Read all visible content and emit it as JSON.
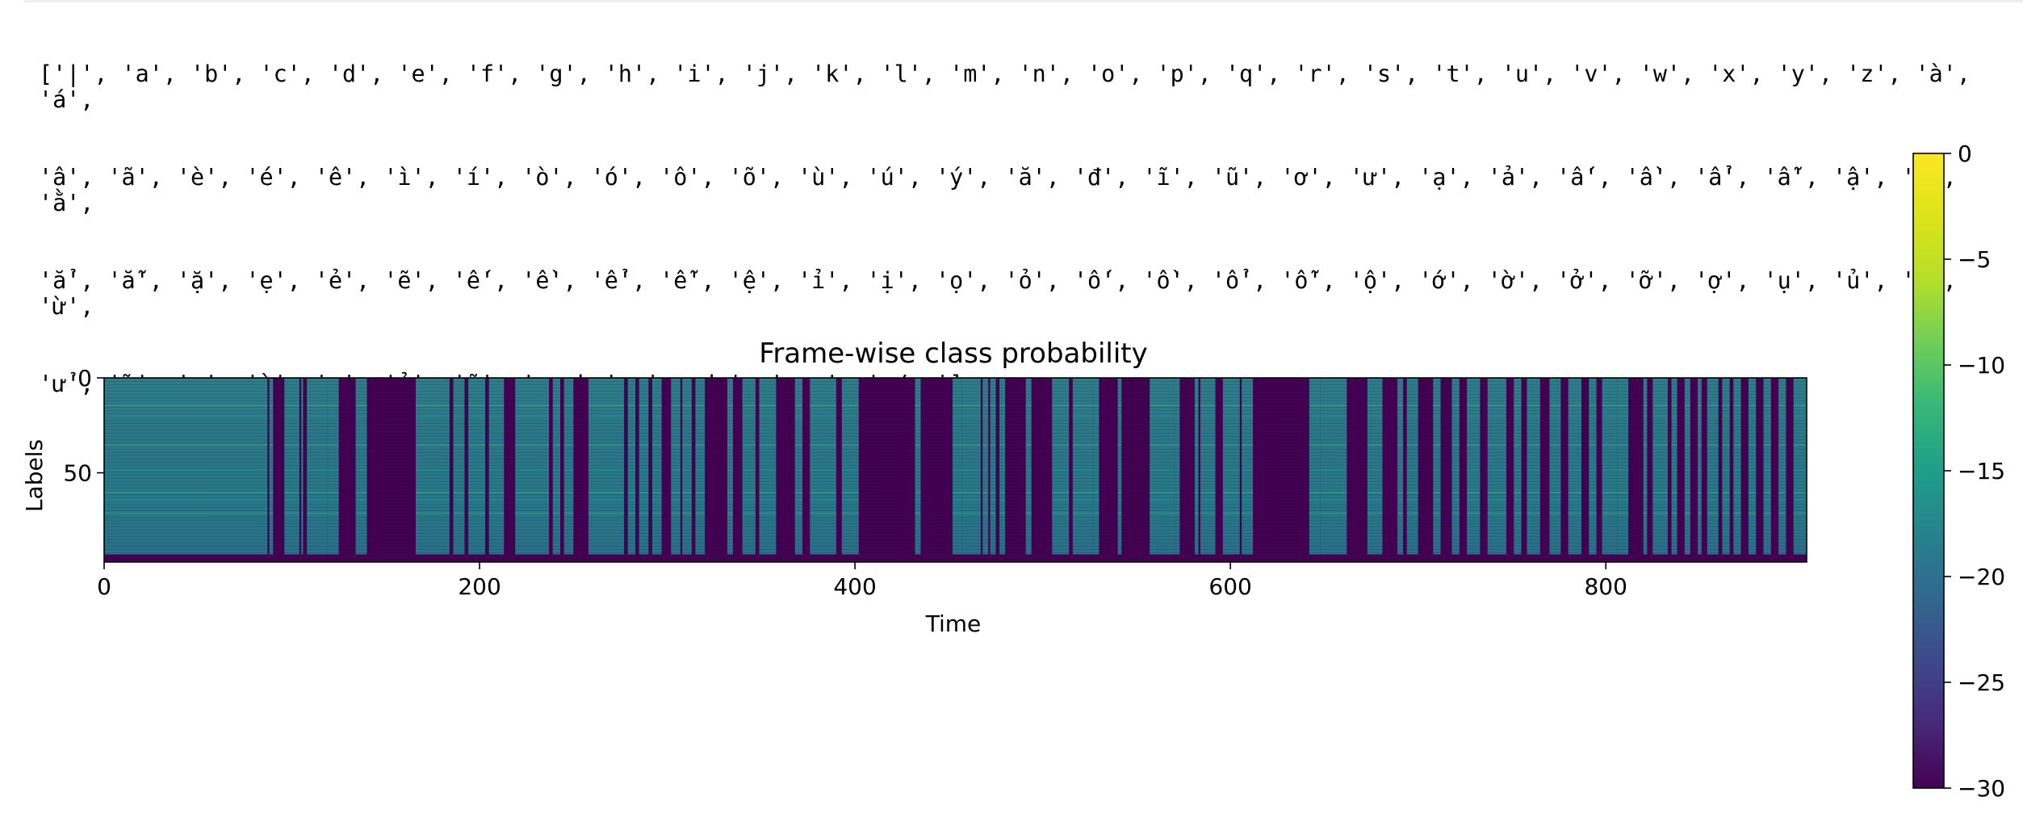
{
  "output": {
    "lines": [
      "['|', 'a', 'b', 'c', 'd', 'e', 'f', 'g', 'h', 'i', 'j', 'k', 'l', 'm', 'n', 'o', 'p', 'q', 'r', 's', 't', 'u', 'v', 'w', 'x', 'y', 'z', 'à', 'á',",
      "'â', 'ã', 'è', 'é', 'ê', 'ì', 'í', 'ò', 'ó', 'ô', 'õ', 'ù', 'ú', 'ý', 'ă', 'đ', 'ĩ', 'ũ', 'ơ', 'ư', 'ạ', 'ả', 'ấ', 'ầ', 'ẩ', 'ẫ', 'ậ', 'ắ', 'ằ',",
      "'ẳ', 'ẵ', 'ặ', 'ẹ', 'ẻ', 'ẽ', 'ế', 'ề', 'ể', 'ễ', 'ệ', 'ỉ', 'ị', 'ọ', 'ỏ', 'ố', 'ồ', 'ổ', 'ỗ', 'ộ', 'ớ', 'ờ', 'ở', 'ỡ', 'ợ', 'ụ', 'ủ', 'ứ', 'ừ',",
      "'ử', 'ữ', 'ự', 'ỳ', 'ỵ', 'ỷ', 'ỹ', '<unk>', '<pad>', '<s>', '</s>']"
    ]
  },
  "chart_data": {
    "type": "heatmap",
    "title": "Frame-wise class probability",
    "xlabel": "Time",
    "ylabel": "Labels",
    "xlim": [
      0,
      907
    ],
    "ylim": [
      0,
      97
    ],
    "xticks": [
      0,
      200,
      400,
      600,
      800
    ],
    "yticks": [
      0,
      50
    ],
    "colormap": "viridis",
    "color_range": [
      -30,
      0
    ],
    "colorbar_ticks": [
      0,
      -5,
      -10,
      -15,
      -20,
      -25,
      -30
    ],
    "active_frame_spans": [
      [
        0,
        87
      ],
      [
        88,
        90
      ],
      [
        96,
        104
      ],
      [
        105,
        106
      ],
      [
        108,
        119
      ],
      [
        119,
        125
      ],
      [
        134,
        140
      ],
      [
        166,
        184
      ],
      [
        186,
        192
      ],
      [
        194,
        203
      ],
      [
        205,
        213
      ],
      [
        219,
        237
      ],
      [
        239,
        243
      ],
      [
        245,
        250
      ],
      [
        258,
        277
      ],
      [
        279,
        283
      ],
      [
        285,
        290
      ],
      [
        292,
        297
      ],
      [
        302,
        307
      ],
      [
        308,
        313
      ],
      [
        315,
        320
      ],
      [
        332,
        335
      ],
      [
        340,
        347
      ],
      [
        349,
        358
      ],
      [
        368,
        372
      ],
      [
        376,
        390
      ],
      [
        393,
        402
      ],
      [
        432,
        435
      ],
      [
        452,
        457
      ],
      [
        457,
        467
      ],
      [
        468,
        471
      ],
      [
        472,
        475
      ],
      [
        477,
        480
      ],
      [
        491,
        494
      ],
      [
        505,
        514
      ],
      [
        516,
        527
      ],
      [
        527,
        530
      ],
      [
        540,
        542
      ],
      [
        557,
        561
      ],
      [
        561,
        570
      ],
      [
        570,
        573
      ],
      [
        581,
        583
      ],
      [
        584,
        592
      ],
      [
        596,
        605
      ],
      [
        606,
        612
      ],
      [
        642,
        648
      ],
      [
        648,
        658
      ],
      [
        658,
        662
      ],
      [
        673,
        678
      ],
      [
        678,
        681
      ],
      [
        689,
        692
      ],
      [
        694,
        700
      ],
      [
        708,
        712
      ],
      [
        718,
        722
      ],
      [
        726,
        733
      ],
      [
        737,
        747
      ],
      [
        751,
        755
      ],
      [
        758,
        765
      ],
      [
        770,
        776
      ],
      [
        780,
        787
      ],
      [
        791,
        795
      ],
      [
        798,
        806
      ],
      [
        806,
        812
      ],
      [
        820,
        822
      ],
      [
        825,
        833
      ],
      [
        835,
        838
      ],
      [
        842,
        845
      ],
      [
        849,
        851
      ],
      [
        854,
        860
      ],
      [
        862,
        866
      ],
      [
        868,
        872
      ],
      [
        876,
        880
      ],
      [
        884,
        888
      ],
      [
        892,
        896
      ],
      [
        900,
        907
      ]
    ],
    "bright_label_rows": [
      14,
      20,
      35,
      48,
      60,
      64,
      71
    ]
  }
}
